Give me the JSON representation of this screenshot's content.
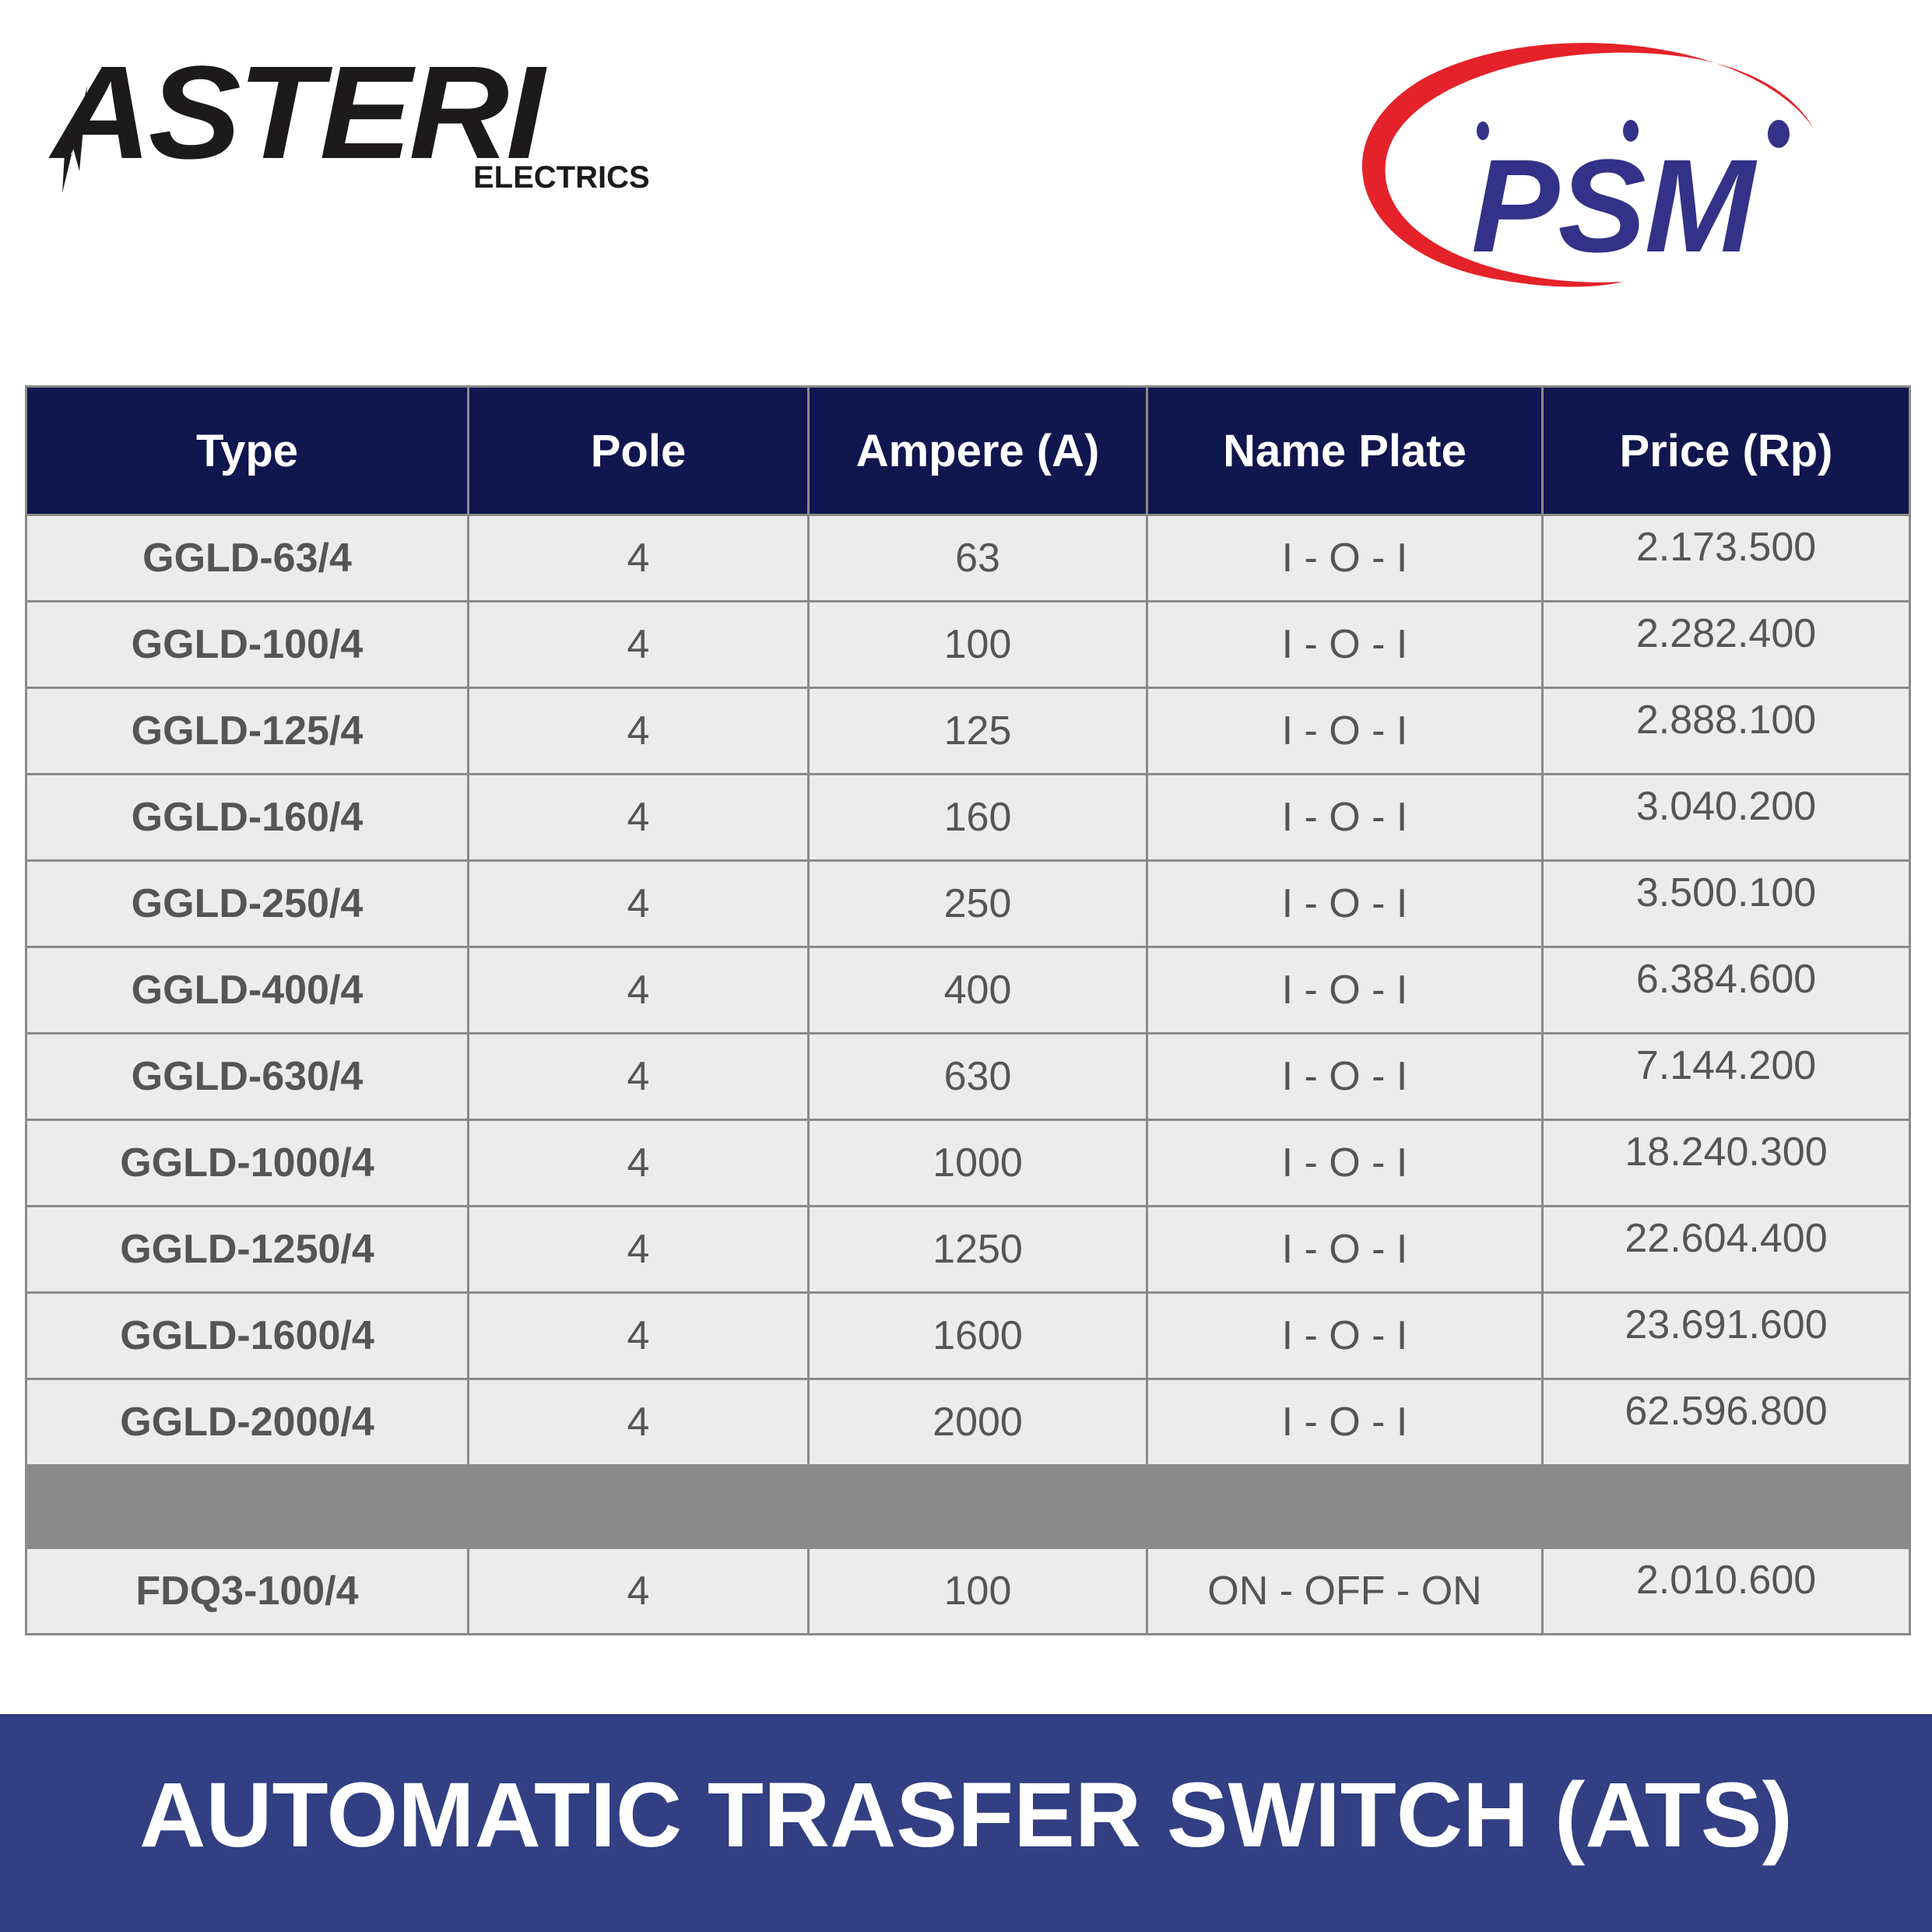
{
  "logos": {
    "left": {
      "name": "ASTERI",
      "sub": "ELECTRICS"
    },
    "right": {
      "name": "PSM",
      "colors": {
        "arc": "#e52229",
        "text": "#323388"
      }
    }
  },
  "table": {
    "headers": [
      "Type",
      "Pole",
      "Ampere (A)",
      "Name Plate",
      "Price (Rp)"
    ],
    "rows": [
      [
        "GGLD-63/4",
        "4",
        "63",
        "I - O - I",
        "2.173.500"
      ],
      [
        "GGLD-100/4",
        "4",
        "100",
        "I - O - I",
        "2.282.400"
      ],
      [
        "GGLD-125/4",
        "4",
        "125",
        "I - O - I",
        "2.888.100"
      ],
      [
        "GGLD-160/4",
        "4",
        "160",
        "I - O - I",
        "3.040.200"
      ],
      [
        "GGLD-250/4",
        "4",
        "250",
        "I - O - I",
        "3.500.100"
      ],
      [
        "GGLD-400/4",
        "4",
        "400",
        "I - O - I",
        "6.384.600"
      ],
      [
        "GGLD-630/4",
        "4",
        "630",
        "I - O - I",
        "7.144.200"
      ],
      [
        "GGLD-1000/4",
        "4",
        "1000",
        "I - O - I",
        "18.240.300"
      ],
      [
        "GGLD-1250/4",
        "4",
        "1250",
        "I - O - I",
        "22.604.400"
      ],
      [
        "GGLD-1600/4",
        "4",
        "1600",
        "I - O - I",
        "23.691.600"
      ],
      [
        "GGLD-2000/4",
        "4",
        "2000",
        "I - O - I",
        "62.596.800"
      ]
    ],
    "extra_rows": [
      [
        "FDQ3-100/4",
        "4",
        "100",
        "ON - OFF - ON",
        "2.010.600"
      ]
    ],
    "colors": {
      "header_bg": "#10164e",
      "cell_bg": "#ececec",
      "separator": "#8a8a8a"
    }
  },
  "banner": {
    "title": "AUTOMATIC TRASFER SWITCH (ATS)",
    "bg": "#323f83"
  }
}
